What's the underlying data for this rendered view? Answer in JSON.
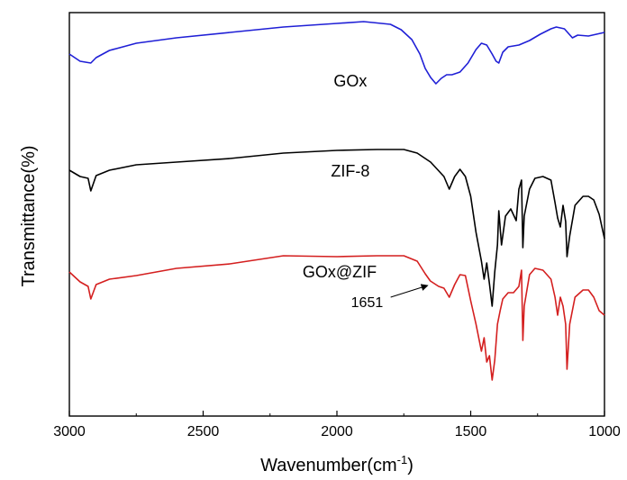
{
  "chart_data": {
    "type": "line",
    "title": "",
    "xlabel": "Wavenumber(cm",
    "xlabel_sup": "-1",
    "xlabel_close": ")",
    "ylabel": "Transmittance(%)",
    "xlim": [
      3000,
      1000
    ],
    "x_reversed": true,
    "y_ticks_shown": false,
    "grid": false,
    "legend": "none",
    "x_ticks": [
      3000,
      2500,
      2000,
      1500,
      1000
    ],
    "x_tick_labels": [
      "3000",
      "2500",
      "2000",
      "1500",
      "1000"
    ],
    "series_offset_note": "curves vertically stacked, arbitrary units",
    "series": [
      {
        "name": "GOx",
        "color": "#1f1fd6",
        "label_x": 1950,
        "points": [
          [
            3000,
            60
          ],
          [
            2960,
            68
          ],
          [
            2920,
            70
          ],
          [
            2900,
            64
          ],
          [
            2850,
            56
          ],
          [
            2750,
            48
          ],
          [
            2600,
            42
          ],
          [
            2400,
            36
          ],
          [
            2200,
            30
          ],
          [
            2000,
            26
          ],
          [
            1900,
            24
          ],
          [
            1800,
            27
          ],
          [
            1760,
            33
          ],
          [
            1720,
            44
          ],
          [
            1690,
            60
          ],
          [
            1670,
            76
          ],
          [
            1650,
            86
          ],
          [
            1630,
            93
          ],
          [
            1610,
            87
          ],
          [
            1590,
            83
          ],
          [
            1570,
            83
          ],
          [
            1540,
            80
          ],
          [
            1510,
            70
          ],
          [
            1480,
            55
          ],
          [
            1460,
            48
          ],
          [
            1440,
            50
          ],
          [
            1420,
            60
          ],
          [
            1405,
            68
          ],
          [
            1395,
            70
          ],
          [
            1380,
            58
          ],
          [
            1360,
            52
          ],
          [
            1320,
            50
          ],
          [
            1280,
            45
          ],
          [
            1240,
            38
          ],
          [
            1200,
            32
          ],
          [
            1180,
            30
          ],
          [
            1150,
            32
          ],
          [
            1120,
            42
          ],
          [
            1100,
            39
          ],
          [
            1060,
            40
          ],
          [
            1030,
            38
          ],
          [
            1000,
            36
          ]
        ]
      },
      {
        "name": "ZIF-8",
        "color": "#000000",
        "label_x": 1950,
        "points": [
          [
            3000,
            189
          ],
          [
            2960,
            196
          ],
          [
            2930,
            198
          ],
          [
            2920,
            212
          ],
          [
            2900,
            195
          ],
          [
            2850,
            189
          ],
          [
            2750,
            183
          ],
          [
            2600,
            180
          ],
          [
            2400,
            176
          ],
          [
            2200,
            170
          ],
          [
            2000,
            167
          ],
          [
            1850,
            166
          ],
          [
            1750,
            166
          ],
          [
            1700,
            170
          ],
          [
            1650,
            180
          ],
          [
            1600,
            196
          ],
          [
            1580,
            210
          ],
          [
            1560,
            196
          ],
          [
            1540,
            188
          ],
          [
            1520,
            196
          ],
          [
            1500,
            218
          ],
          [
            1480,
            258
          ],
          [
            1460,
            290
          ],
          [
            1450,
            310
          ],
          [
            1440,
            292
          ],
          [
            1430,
            315
          ],
          [
            1420,
            340
          ],
          [
            1410,
            302
          ],
          [
            1400,
            272
          ],
          [
            1395,
            234
          ],
          [
            1385,
            272
          ],
          [
            1370,
            240
          ],
          [
            1350,
            232
          ],
          [
            1330,
            245
          ],
          [
            1320,
            210
          ],
          [
            1310,
            200
          ],
          [
            1305,
            275
          ],
          [
            1300,
            240
          ],
          [
            1280,
            210
          ],
          [
            1260,
            198
          ],
          [
            1230,
            196
          ],
          [
            1200,
            200
          ],
          [
            1185,
            225
          ],
          [
            1175,
            242
          ],
          [
            1165,
            252
          ],
          [
            1155,
            228
          ],
          [
            1145,
            246
          ],
          [
            1140,
            285
          ],
          [
            1130,
            262
          ],
          [
            1110,
            228
          ],
          [
            1080,
            218
          ],
          [
            1060,
            218
          ],
          [
            1040,
            222
          ],
          [
            1020,
            238
          ],
          [
            1000,
            265
          ]
        ]
      },
      {
        "name": "GOx@ZIF",
        "color": "#d41f1f",
        "label_x": 1990,
        "points": [
          [
            3000,
            302
          ],
          [
            2960,
            313
          ],
          [
            2930,
            318
          ],
          [
            2920,
            332
          ],
          [
            2900,
            316
          ],
          [
            2850,
            310
          ],
          [
            2750,
            306
          ],
          [
            2600,
            298
          ],
          [
            2400,
            293
          ],
          [
            2200,
            284
          ],
          [
            2000,
            285
          ],
          [
            1850,
            284
          ],
          [
            1750,
            284
          ],
          [
            1700,
            290
          ],
          [
            1670,
            304
          ],
          [
            1651,
            312
          ],
          [
            1620,
            318
          ],
          [
            1600,
            320
          ],
          [
            1580,
            330
          ],
          [
            1560,
            316
          ],
          [
            1540,
            305
          ],
          [
            1520,
            306
          ],
          [
            1500,
            334
          ],
          [
            1480,
            360
          ],
          [
            1460,
            390
          ],
          [
            1450,
            375
          ],
          [
            1440,
            402
          ],
          [
            1430,
            395
          ],
          [
            1420,
            422
          ],
          [
            1410,
            400
          ],
          [
            1400,
            360
          ],
          [
            1390,
            345
          ],
          [
            1380,
            332
          ],
          [
            1360,
            325
          ],
          [
            1340,
            325
          ],
          [
            1320,
            318
          ],
          [
            1310,
            300
          ],
          [
            1305,
            378
          ],
          [
            1300,
            340
          ],
          [
            1280,
            305
          ],
          [
            1260,
            298
          ],
          [
            1230,
            300
          ],
          [
            1200,
            310
          ],
          [
            1185,
            330
          ],
          [
            1175,
            350
          ],
          [
            1165,
            330
          ],
          [
            1155,
            340
          ],
          [
            1145,
            360
          ],
          [
            1140,
            410
          ],
          [
            1130,
            360
          ],
          [
            1110,
            330
          ],
          [
            1080,
            322
          ],
          [
            1060,
            322
          ],
          [
            1040,
            330
          ],
          [
            1020,
            345
          ],
          [
            1000,
            350
          ]
        ]
      }
    ],
    "annotations": [
      {
        "text": "1651",
        "arrow_to_x": 1651,
        "series": "GOx@ZIF"
      }
    ]
  }
}
